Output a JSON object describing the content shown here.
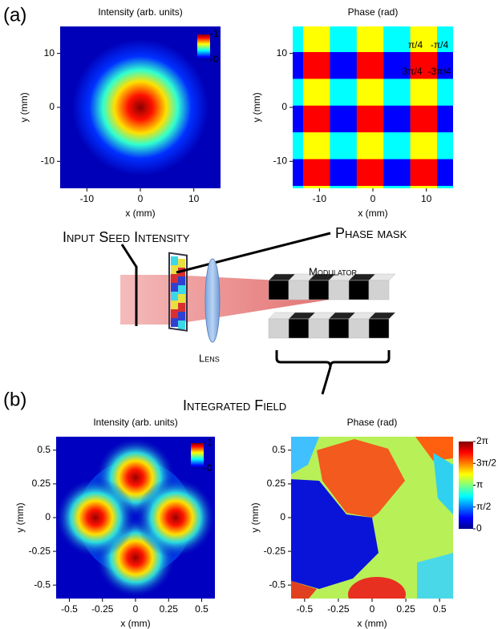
{
  "panel_labels": [
    "(a)",
    "(b)"
  ],
  "chart_data": [
    {
      "type": "heatmap",
      "title": "Intensity (arb. units)",
      "x_label": "x (mm)",
      "y_label": "y (mm)",
      "xlim": [
        -15,
        15
      ],
      "ylim": [
        -15,
        15
      ],
      "xticks": [
        -10,
        0,
        10
      ],
      "yticks": [
        -10,
        0,
        10
      ],
      "colorbar": {
        "lim": [
          0,
          1
        ],
        "ticks": [
          0,
          1
        ]
      }
    },
    {
      "type": "heatmap",
      "title": "Phase (rad)",
      "x_label": "x (mm)",
      "y_label": "y (mm)",
      "xlim": [
        -15,
        15
      ],
      "ylim": [
        -15,
        15
      ],
      "xticks": [
        -10,
        0,
        10
      ],
      "yticks": [
        -10,
        0,
        10
      ],
      "annotations": [
        "π/4",
        "-π/4",
        "3π/4",
        "-3π/4"
      ]
    },
    {
      "type": "heatmap",
      "title": "Intensity (arb. units)",
      "x_label": "x (mm)",
      "y_label": "y (mm)",
      "xlim": [
        -0.6,
        0.6
      ],
      "ylim": [
        -0.6,
        0.6
      ],
      "xticks": [
        -0.5,
        -0.25,
        0,
        0.25,
        0.5
      ],
      "yticks": [
        -0.5,
        -0.25,
        0,
        0.25,
        0.5
      ],
      "colorbar": {
        "lim": [
          0,
          1
        ],
        "ticks": [
          0,
          1
        ]
      }
    },
    {
      "type": "heatmap",
      "title": "Phase (rad)",
      "x_label": "x (mm)",
      "y_label": "y (mm)",
      "xlim": [
        -0.6,
        0.6
      ],
      "ylim": [
        -0.6,
        0.6
      ],
      "xticks": [
        -0.5,
        -0.25,
        0,
        0.25,
        0.5
      ],
      "yticks": [
        -0.5,
        -0.25,
        0,
        0.25,
        0.5
      ],
      "colorbar": {
        "lim": [
          0,
          6.2832
        ],
        "ticks": [
          0,
          {
            "value": 1.5708,
            "label": "π/2"
          },
          {
            "value": 3.1416,
            "label": "π"
          },
          {
            "value": 4.7124,
            "label": "3π/2"
          },
          {
            "value": 6.2832,
            "label": "2π"
          }
        ]
      }
    }
  ],
  "diagram": {
    "input": "Input Seed Intensity",
    "phase_mask": "Phase mask",
    "modulator": "Modulator",
    "lens": "Lens",
    "integrated": "Integrated Field"
  }
}
